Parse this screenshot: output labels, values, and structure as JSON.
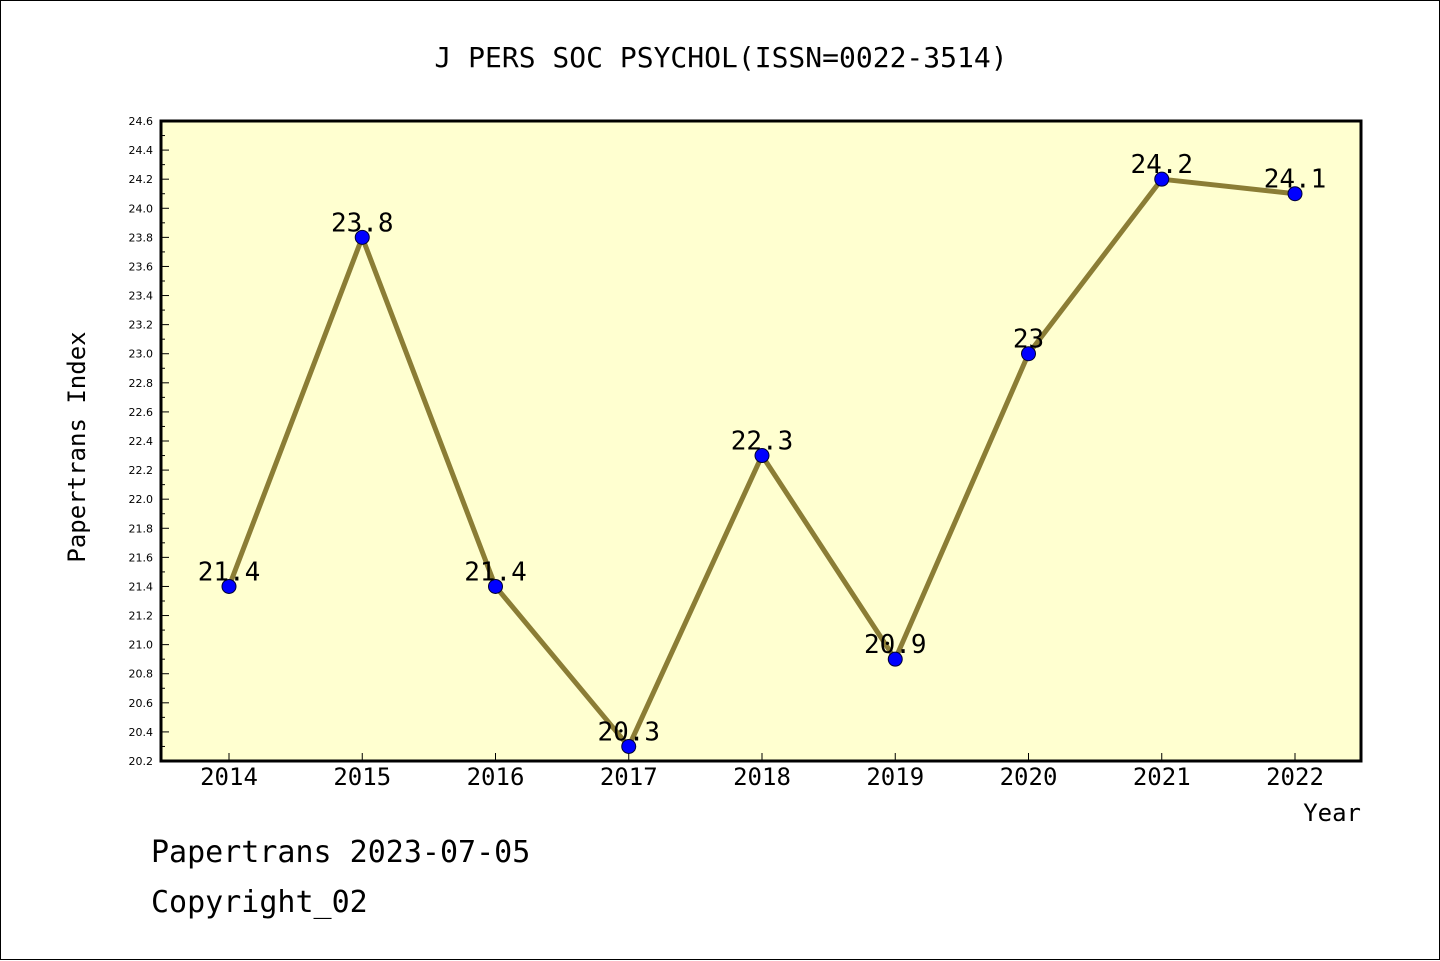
{
  "chart_data": {
    "type": "line",
    "title": "J PERS SOC PSYCHOL(ISSN=0022-3514)",
    "xlabel": "Year",
    "ylabel": "Papertrans Index",
    "categories": [
      "2014",
      "2015",
      "2016",
      "2017",
      "2018",
      "2019",
      "2020",
      "2021",
      "2022"
    ],
    "series": [
      {
        "values": [
          21.4,
          23.8,
          21.4,
          20.3,
          22.3,
          20.9,
          23.0,
          24.2,
          24.1
        ]
      }
    ],
    "data_labels": [
      "21.4",
      "23.8",
      "21.4",
      "20.3",
      "22.3",
      "20.9",
      "23",
      "24.2",
      "24.1"
    ],
    "ylim": [
      20.2,
      24.6
    ],
    "yticks": [
      "20.2",
      "20.4",
      "20.6",
      "20.8",
      "21.0",
      "21.2",
      "21.4",
      "21.6",
      "21.8",
      "22.0",
      "22.2",
      "22.4",
      "22.6",
      "22.8",
      "23.0",
      "23.2",
      "23.4",
      "23.6",
      "23.8",
      "24.0",
      "24.2",
      "24.4",
      "24.6"
    ],
    "grid": false,
    "colors": {
      "plot_background": "#ffffd0",
      "line": "#8b7d35",
      "marker": "#0000ff"
    }
  },
  "footer": {
    "line1": "Papertrans 2023-07-05",
    "line2": "Copyright_02"
  }
}
